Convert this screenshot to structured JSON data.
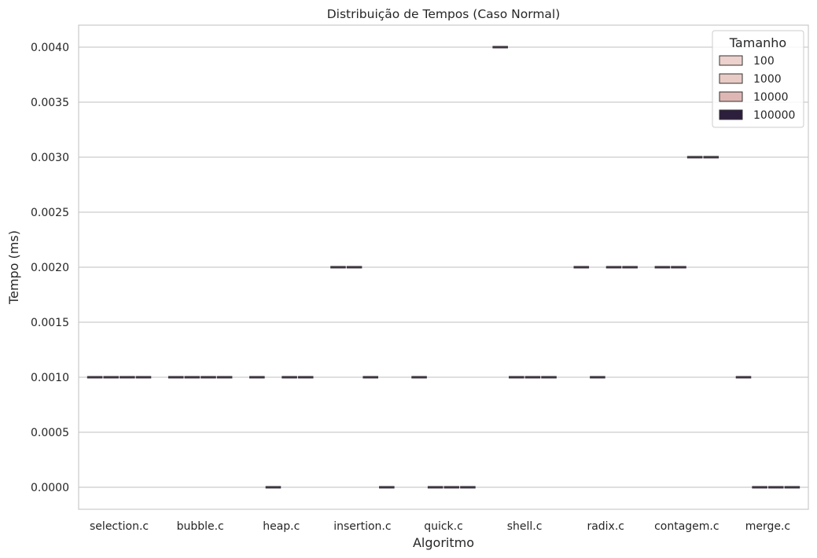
{
  "chart_data": {
    "type": "box",
    "title": "Distribuição de Tempos (Caso Normal)",
    "xlabel": "Algoritmo",
    "ylabel": "Tempo (ms)",
    "ylim": [
      -0.0002,
      0.0042
    ],
    "yticks": [
      "0.0000",
      "0.0005",
      "0.0010",
      "0.0015",
      "0.0020",
      "0.0025",
      "0.0030",
      "0.0035",
      "0.0040"
    ],
    "grid": "horizontal",
    "legend_position": "top-right",
    "legend_title": "Tamanho",
    "categories": [
      "selection.c",
      "bubble.c",
      "heap.c",
      "insertion.c",
      "quick.c",
      "shell.c",
      "radix.c",
      "contagem.c",
      "merge.c"
    ],
    "series": [
      {
        "name": "100",
        "color": "#ecd1cc",
        "values": [
          0.001,
          0.001,
          0.001,
          0.002,
          0.001,
          0.004,
          0.002,
          0.002,
          0.001
        ]
      },
      {
        "name": "1000",
        "color": "#e8cbc5",
        "values": [
          0.001,
          0.001,
          0.0,
          0.002,
          0.0,
          0.001,
          0.001,
          0.002,
          0.0
        ]
      },
      {
        "name": "10000",
        "color": "#deb7b4",
        "values": [
          0.001,
          0.001,
          0.001,
          0.001,
          0.0,
          0.001,
          0.002,
          0.003,
          0.0
        ]
      },
      {
        "name": "100000",
        "color": "#2c1e3d",
        "values": [
          0.001,
          0.001,
          0.001,
          0.0,
          0.0,
          0.001,
          0.002,
          0.003,
          0.0
        ]
      }
    ]
  }
}
